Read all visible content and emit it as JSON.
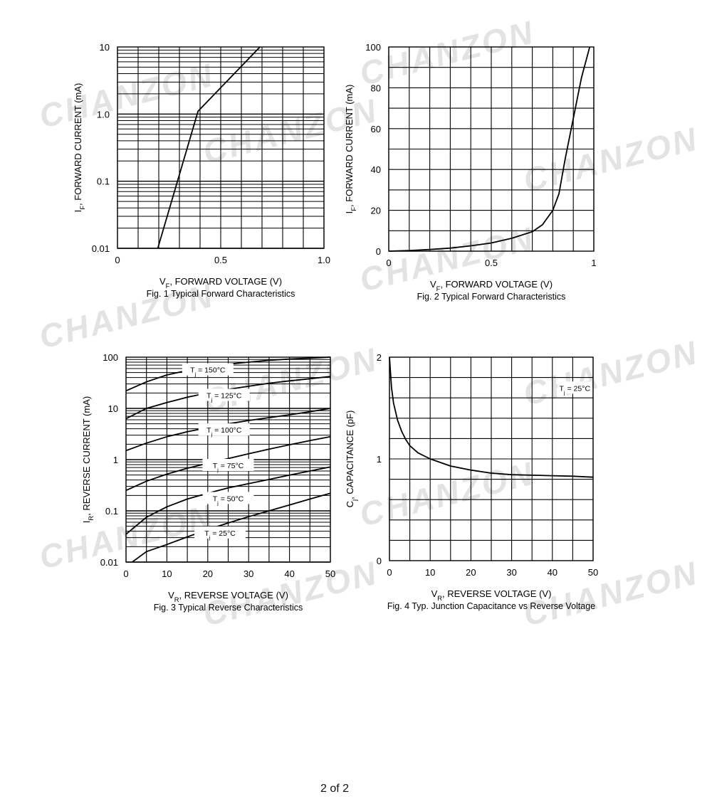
{
  "watermark": {
    "text": "CHANZON",
    "color": "#e3e3e3"
  },
  "footer": {
    "page": "2",
    "of_label": "of",
    "total": "2"
  },
  "chart_data": [
    {
      "id": "fig1",
      "type": "line",
      "yscale": "log",
      "caption": "Fig. 1 Typical Forward Characteristics",
      "xlabel": {
        "main": "V",
        "sub": "F",
        "rest": ", FORWARD VOLTAGE (V)"
      },
      "ylabel": {
        "main": "I",
        "sub": "F",
        "rest": ", FORWARD CURRENT (mA)"
      },
      "xlim": [
        0,
        1.0
      ],
      "ylim": [
        0.01,
        10
      ],
      "xticks": [
        0,
        0.5,
        1.0
      ],
      "xtick_labels": [
        "0",
        "0.5",
        "1.0"
      ],
      "yticks": [
        0.01,
        0.1,
        1,
        10
      ],
      "ytick_labels": [
        "0.01",
        "0.1",
        "1.0",
        "10"
      ],
      "x_grid_step": 0.1,
      "series": [
        {
          "name": "IF",
          "x": [
            0.195,
            0.39,
            0.69
          ],
          "y": [
            0.01,
            1.1,
            10
          ]
        }
      ]
    },
    {
      "id": "fig2",
      "type": "line",
      "caption": "Fig. 2 Typical Forward Characteristics",
      "xlabel": {
        "main": "V",
        "sub": "F",
        "rest": ", FORWARD VOLTAGE (V)"
      },
      "ylabel": {
        "main": "I",
        "sub": "F",
        "rest": ", FORWARD CURRENT (mA)"
      },
      "xlim": [
        0,
        1
      ],
      "ylim": [
        0,
        100
      ],
      "xticks": [
        0,
        0.5,
        1
      ],
      "xtick_labels": [
        "0",
        "0.5",
        "1"
      ],
      "yticks": [
        0,
        20,
        40,
        60,
        80,
        100
      ],
      "ytick_labels": [
        "0",
        "20",
        "40",
        "60",
        "80",
        "100"
      ],
      "x_grid_step": 0.1,
      "y_grid_step": 10,
      "series": [
        {
          "name": "IF",
          "x": [
            0,
            0.1,
            0.2,
            0.3,
            0.4,
            0.5,
            0.6,
            0.7,
            0.75,
            0.8,
            0.83,
            0.86,
            0.9,
            0.94,
            0.98
          ],
          "y": [
            0,
            0.3,
            0.8,
            1.5,
            2.6,
            4.0,
            6.3,
            9.5,
            13,
            20,
            28,
            45,
            65,
            85,
            100
          ]
        }
      ]
    },
    {
      "id": "fig3",
      "type": "line",
      "yscale": "log",
      "caption": "Fig. 3 Typical Reverse Characteristics",
      "xlabel": {
        "main": "V",
        "sub": "R",
        "rest": ", REVERSE VOLTAGE (V)"
      },
      "ylabel": {
        "main": "I",
        "sub": "R",
        "rest": ", REVERSE CURRENT (mA)"
      },
      "xlim": [
        0,
        50
      ],
      "ylim": [
        0.01,
        100
      ],
      "xticks": [
        0,
        10,
        20,
        30,
        40,
        50
      ],
      "xtick_labels": [
        "0",
        "10",
        "20",
        "30",
        "40",
        "50"
      ],
      "yticks": [
        0.01,
        0.1,
        1,
        10,
        100
      ],
      "ytick_labels": [
        "0.01",
        "0.1",
        "1",
        "10",
        "100"
      ],
      "x_grid_step": 5,
      "series": [
        {
          "name": "150°C",
          "label_main": "T",
          "label_sub": "j",
          "label_rest": " = 150°C",
          "label_at": [
            20,
            55
          ],
          "x": [
            0,
            5,
            10,
            15,
            20,
            25,
            30,
            35,
            40,
            45,
            50
          ],
          "y": [
            22,
            33,
            45,
            55,
            65,
            73,
            80,
            87,
            92,
            96,
            100
          ]
        },
        {
          "name": "125°C",
          "label_main": "T",
          "label_sub": "j",
          "label_rest": " = 125°C",
          "label_at": [
            24,
            17.5
          ],
          "x": [
            0,
            5,
            10,
            15,
            20,
            25,
            30,
            35,
            40,
            45,
            50
          ],
          "y": [
            6.3,
            10,
            13,
            16.5,
            20,
            23.5,
            27,
            31,
            34.5,
            38,
            42
          ]
        },
        {
          "name": "100°C",
          "label_main": "T",
          "label_sub": "j",
          "label_rest": " = 100°C",
          "label_at": [
            24,
            3.7
          ],
          "x": [
            0,
            5,
            10,
            15,
            20,
            25,
            30,
            35,
            40,
            45,
            50
          ],
          "y": [
            1.5,
            2.1,
            2.8,
            3.5,
            4.2,
            5.0,
            5.8,
            6.6,
            7.5,
            8.6,
            10
          ]
        },
        {
          "name": "75°C",
          "label_main": "T",
          "label_sub": "j",
          "label_rest": " = 75°C",
          "label_at": [
            25,
            0.75
          ],
          "x": [
            0,
            5,
            10,
            15,
            20,
            25,
            30,
            35,
            40,
            45,
            50
          ],
          "y": [
            0.25,
            0.38,
            0.52,
            0.68,
            0.85,
            1.05,
            1.3,
            1.6,
            1.95,
            2.35,
            2.8
          ]
        },
        {
          "name": "50°C",
          "label_main": "T",
          "label_sub": "j",
          "label_rest": " = 50°C",
          "label_at": [
            25,
            0.17
          ],
          "x": [
            0,
            5,
            10,
            15,
            20,
            25,
            30,
            35,
            40,
            45,
            50
          ],
          "y": [
            0.035,
            0.075,
            0.12,
            0.17,
            0.22,
            0.28,
            0.34,
            0.41,
            0.5,
            0.6,
            0.72
          ]
        },
        {
          "name": "25°C",
          "label_main": "T",
          "label_sub": "j",
          "label_rest": " = 25°C",
          "label_at": [
            23,
            0.036
          ],
          "x": [
            1.5,
            5,
            10,
            15,
            20,
            25,
            30,
            35,
            40,
            45,
            50
          ],
          "y": [
            0.01,
            0.016,
            0.022,
            0.031,
            0.043,
            0.058,
            0.077,
            0.1,
            0.13,
            0.17,
            0.22
          ]
        }
      ]
    },
    {
      "id": "fig4",
      "type": "line",
      "caption": "Fig. 4 Typ. Junction Capacitance vs Reverse Voltage",
      "xlabel": {
        "main": "V",
        "sub": "R",
        "rest": ", REVERSE VOLTAGE (V)"
      },
      "ylabel": {
        "main": "C",
        "sub": "j",
        "rest": ", CAPACITANCE (pF)"
      },
      "xlim": [
        0,
        50
      ],
      "ylim": [
        0,
        2
      ],
      "xticks": [
        0,
        10,
        20,
        30,
        40,
        50
      ],
      "xtick_labels": [
        "0",
        "10",
        "20",
        "30",
        "40",
        "50"
      ],
      "yticks": [
        0,
        1,
        2
      ],
      "ytick_labels": [
        "0",
        "1",
        "2"
      ],
      "x_grid_step": 5,
      "y_grid_step": 0.2,
      "annotation": {
        "main": "T",
        "sub": "j",
        "rest": " = 25°C",
        "at": [
          45.5,
          1.69
        ]
      },
      "series": [
        {
          "name": "Cj",
          "x": [
            0,
            0.5,
            1,
            2,
            3,
            4,
            5,
            7,
            10,
            15,
            20,
            25,
            30,
            35,
            40,
            45,
            50
          ],
          "y": [
            2.0,
            1.7,
            1.55,
            1.38,
            1.27,
            1.19,
            1.13,
            1.06,
            1.0,
            0.93,
            0.89,
            0.86,
            0.845,
            0.84,
            0.835,
            0.83,
            0.82
          ]
        }
      ]
    }
  ]
}
